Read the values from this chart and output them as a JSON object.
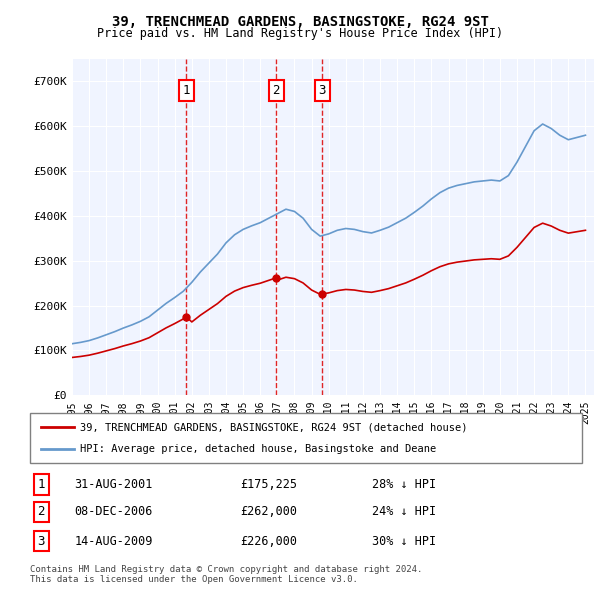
{
  "title": "39, TRENCHMEAD GARDENS, BASINGSTOKE, RG24 9ST",
  "subtitle": "Price paid vs. HM Land Registry's House Price Index (HPI)",
  "legend_line1": "39, TRENCHMEAD GARDENS, BASINGSTOKE, RG24 9ST (detached house)",
  "legend_line2": "HPI: Average price, detached house, Basingstoke and Deane",
  "footer1": "Contains HM Land Registry data © Crown copyright and database right 2024.",
  "footer2": "This data is licensed under the Open Government Licence v3.0.",
  "transactions": [
    {
      "num": 1,
      "date": "31-AUG-2001",
      "price": "£175,225",
      "hpi": "28% ↓ HPI",
      "x_year": 2001.67
    },
    {
      "num": 2,
      "date": "08-DEC-2006",
      "price": "£262,000",
      "hpi": "24% ↓ HPI",
      "x_year": 2006.93
    },
    {
      "num": 3,
      "date": "14-AUG-2009",
      "price": "£226,000",
      "hpi": "30% ↓ HPI",
      "x_year": 2009.62
    }
  ],
  "red_color": "#cc0000",
  "blue_color": "#6699cc",
  "dashed_red": "#dd0000",
  "xlim": [
    1995.0,
    2025.5
  ],
  "ylim": [
    0,
    750000
  ],
  "yticks": [
    0,
    100000,
    200000,
    300000,
    400000,
    500000,
    600000,
    700000
  ],
  "ytick_labels": [
    "£0",
    "£100K",
    "£200K",
    "£300K",
    "£400K",
    "£500K",
    "£600K",
    "£700K"
  ],
  "xticks": [
    1995,
    1996,
    1997,
    1998,
    1999,
    2000,
    2001,
    2002,
    2003,
    2004,
    2005,
    2006,
    2007,
    2008,
    2009,
    2010,
    2011,
    2012,
    2013,
    2014,
    2015,
    2016,
    2017,
    2018,
    2019,
    2020,
    2021,
    2022,
    2023,
    2024,
    2025
  ],
  "background_color": "#ffffff",
  "plot_bg": "#f0f4ff",
  "grid_color": "#ffffff"
}
